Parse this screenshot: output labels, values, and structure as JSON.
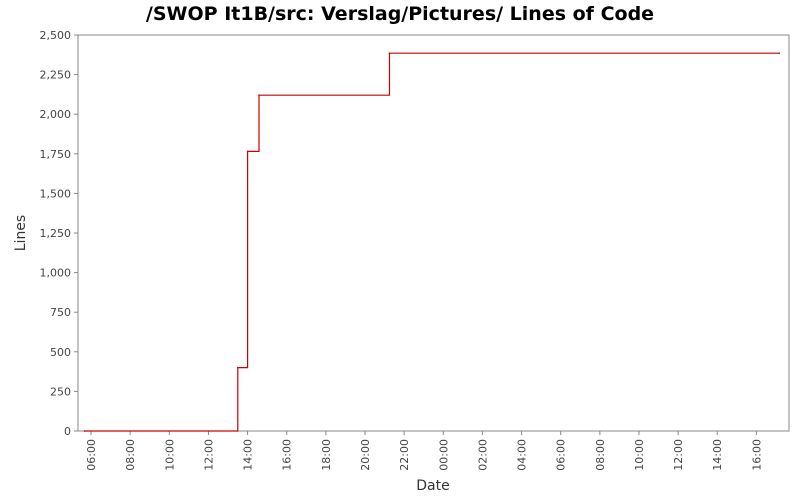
{
  "chart_data": {
    "type": "line",
    "step": "post",
    "title": "/SWOP It1B/src: Verslag/Pictures/ Lines of Code",
    "xlabel": "Date",
    "ylabel": "Lines",
    "ylim": [
      0,
      2500
    ],
    "yticks": [
      {
        "value": 0,
        "label": "0"
      },
      {
        "value": 250,
        "label": "250"
      },
      {
        "value": 500,
        "label": "500"
      },
      {
        "value": 750,
        "label": "750"
      },
      {
        "value": 1000,
        "label": "1,000"
      },
      {
        "value": 1250,
        "label": "1,250"
      },
      {
        "value": 1500,
        "label": "1,500"
      },
      {
        "value": 1750,
        "label": "1,750"
      },
      {
        "value": 2000,
        "label": "2,000"
      },
      {
        "value": 2250,
        "label": "2,250"
      },
      {
        "value": 2500,
        "label": "2,500"
      }
    ],
    "xlim": [
      "day1 05:20",
      "day2 17:40"
    ],
    "xticks": [
      "06:00",
      "08:00",
      "10:00",
      "12:00",
      "14:00",
      "16:00",
      "18:00",
      "20:00",
      "22:00",
      "00:00",
      "02:00",
      "04:00",
      "06:00",
      "08:00",
      "10:00",
      "12:00",
      "14:00",
      "16:00"
    ],
    "series": [
      {
        "color": "#cc0000",
        "points": [
          {
            "x": "day1 05:40",
            "y": 0
          },
          {
            "x": "day1 13:30",
            "y": 400
          },
          {
            "x": "day1 14:00",
            "y": 1765
          },
          {
            "x": "day1 14:35",
            "y": 2120
          },
          {
            "x": "day1 21:15",
            "y": 2385
          },
          {
            "x": "day2 17:10",
            "y": 2385
          }
        ]
      }
    ],
    "grid": false,
    "legend": "none"
  }
}
